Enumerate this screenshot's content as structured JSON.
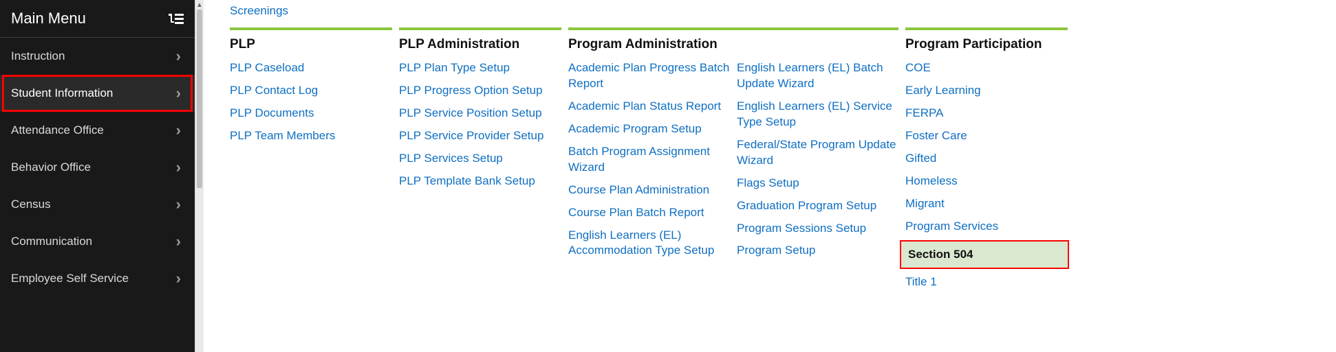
{
  "sidebar": {
    "title": "Main Menu",
    "items": [
      {
        "label": "Instruction",
        "selected": false,
        "highlighted": false
      },
      {
        "label": "Student Information",
        "selected": true,
        "highlighted": true
      },
      {
        "label": "Attendance Office",
        "selected": false,
        "highlighted": false
      },
      {
        "label": "Behavior Office",
        "selected": false,
        "highlighted": false
      },
      {
        "label": "Census",
        "selected": false,
        "highlighted": false
      },
      {
        "label": "Communication",
        "selected": false,
        "highlighted": false
      },
      {
        "label": "Employee Self Service",
        "selected": false,
        "highlighted": false
      }
    ]
  },
  "topLink": "Screenings",
  "columns": {
    "plp": {
      "title": "PLP",
      "links": [
        "PLP Caseload",
        "PLP Contact Log",
        "PLP Documents",
        "PLP Team Members"
      ]
    },
    "plpAdmin": {
      "title": "PLP Administration",
      "links": [
        "PLP Plan Type Setup",
        "PLP Progress Option Setup",
        "PLP Service Position Setup",
        "PLP Service Provider Setup",
        "PLP Services Setup",
        "PLP Template Bank Setup"
      ]
    },
    "progAdmin": {
      "title": "Program Administration",
      "left": [
        "Academic Plan Progress Batch Report",
        "Academic Plan Status Report",
        "Academic Program Setup",
        "Batch Program Assignment Wizard",
        "Course Plan Administration",
        "Course Plan Batch Report",
        "English Learners (EL) Accommodation Type Setup"
      ],
      "right": [
        "English Learners (EL) Batch Update Wizard",
        "English Learners (EL) Service Type Setup",
        "Federal/State Program Update Wizard",
        "Flags Setup",
        "Graduation Program Setup",
        "Program Sessions Setup",
        "Program Setup"
      ]
    },
    "progPart": {
      "title": "Program Participation",
      "links": [
        {
          "label": "COE"
        },
        {
          "label": "Early Learning"
        },
        {
          "label": "FERPA"
        },
        {
          "label": "Foster Care"
        },
        {
          "label": "Gifted"
        },
        {
          "label": "Homeless"
        },
        {
          "label": "Migrant"
        },
        {
          "label": "Program Services"
        },
        {
          "label": "Section 504",
          "highlighted": true
        },
        {
          "label": "Title 1"
        }
      ]
    }
  },
  "colors": {
    "link": "#0f6fc2",
    "accentGreen": "#8cc63f",
    "sidebarBg": "#191919",
    "highlightRed": "#ff0000",
    "highlightFill": "#dbe8d0"
  }
}
